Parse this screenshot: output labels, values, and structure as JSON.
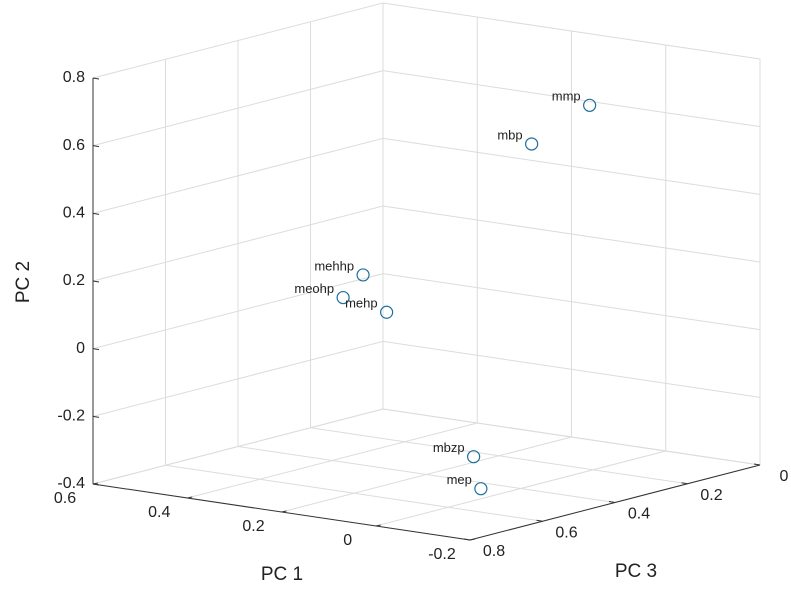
{
  "chart_data": {
    "type": "scatter3d",
    "xlabel": "PC 1",
    "ylabel": "PC 2",
    "zlabel": "PC 3",
    "xlim": [
      -0.2,
      0.6
    ],
    "ylim": [
      -0.4,
      0.8
    ],
    "zlim": [
      0,
      0.8
    ],
    "xticks": [
      -0.2,
      0,
      0.2,
      0.4,
      0.6
    ],
    "yticks": [
      -0.4,
      -0.2,
      0,
      0.2,
      0.4,
      0.6,
      0.8
    ],
    "zticks": [
      0,
      0.2,
      0.4,
      0.6,
      0.8
    ],
    "grid": true,
    "color": "#1f6f9a",
    "labels": [
      "mmp",
      "mbp",
      "mehhp",
      "meohp",
      "mehp",
      "mbzp",
      "mep"
    ],
    "x": [
      0.0,
      0.0,
      0.25,
      0.3,
      0.2,
      0.0,
      0.0
    ],
    "y": [
      0.68,
      0.61,
      0.21,
      0.13,
      0.11,
      -0.27,
      -0.37
    ],
    "z": [
      0.21,
      0.37,
      0.51,
      0.5,
      0.51,
      0.53,
      0.51
    ]
  }
}
